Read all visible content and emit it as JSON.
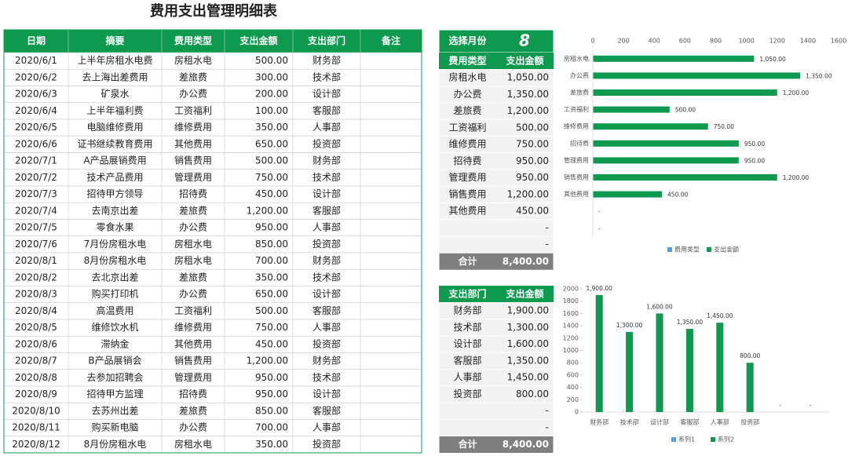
{
  "title": "费用支出管理明细表",
  "table": {
    "header": [
      "日期",
      "摘要",
      "费用类型",
      "支出金额",
      "支出部门",
      "备注"
    ],
    "rows": [
      [
        "2020/6/1",
        "上半年房租水电费",
        "房租水电",
        "500.00",
        "财务部"
      ],
      [
        "2020/6/2",
        "去上海出差费用",
        "差旅费",
        "300.00",
        "技术部"
      ],
      [
        "2020/6/3",
        "矿泉水",
        "办公费",
        "200.00",
        "设计部"
      ],
      [
        "2020/6/4",
        "上半年福利费",
        "工资福利",
        "100.00",
        "客服部"
      ],
      [
        "2020/6/5",
        "电脑维修费用",
        "维修费用",
        "350.00",
        "人事部"
      ],
      [
        "2020/6/6",
        "证书继续教育费用",
        "其他费用",
        "650.00",
        "投资部"
      ],
      [
        "2020/7/1",
        "A产品展销费用",
        "销售费用",
        "500.00",
        "财务部"
      ],
      [
        "2020/7/2",
        "技术产品费用",
        "管理费用",
        "750.00",
        "技术部"
      ],
      [
        "2020/7/3",
        "招待甲方领导",
        "招待费",
        "450.00",
        "设计部"
      ],
      [
        "2020/7/4",
        "去南京出差",
        "差旅费",
        "1,200.00",
        "客服部"
      ],
      [
        "2020/7/5",
        "零食水果",
        "办公费",
        "950.00",
        "人事部"
      ],
      [
        "2020/7/6",
        "7月份房租水电",
        "房租水电",
        "850.00",
        "投资部"
      ],
      [
        "2020/8/1",
        "8月份房租水电",
        "房租水电",
        "700.00",
        "财务部"
      ],
      [
        "2020/8/2",
        "去北京出差",
        "差旅费",
        "350.00",
        "技术部"
      ],
      [
        "2020/8/3",
        "购买打印机",
        "办公费",
        "650.00",
        "设计部"
      ],
      [
        "2020/8/4",
        "高温费用",
        "工资福利",
        "500.00",
        "客服部"
      ],
      [
        "2020/8/5",
        "维修饮水机",
        "维修费用",
        "750.00",
        "人事部"
      ],
      [
        "2020/8/6",
        "滞纳金",
        "其他费用",
        "450.00",
        "投资部"
      ],
      [
        "2020/8/7",
        "B产品展销会",
        "销售费用",
        "1,200.00",
        "财务部"
      ],
      [
        "2020/8/8",
        "去参加招聘会",
        "管理费用",
        "950.00",
        "技术部"
      ],
      [
        "2020/8/9",
        "招待甲方监理",
        "招待费",
        "950.00",
        "设计部"
      ],
      [
        "2020/8/10",
        "去苏州出差",
        "差旅费",
        "850.00",
        "客服部"
      ],
      [
        "2020/8/11",
        "购买新电脑",
        "办公费",
        "700.00",
        "人事部"
      ],
      [
        "2020/8/12",
        "8月份房租水电",
        "房租水电",
        "350.00",
        "投资部"
      ]
    ]
  },
  "summary_type": {
    "month_label": "选择月份",
    "month": 8,
    "header": [
      "费用类型",
      "支出金额"
    ],
    "rows": [
      [
        "房租水电",
        "1,050.00"
      ],
      [
        "办公费",
        "1,350.00"
      ],
      [
        "差旅费",
        "1,200.00"
      ],
      [
        "工资福利",
        "500.00"
      ],
      [
        "维修费用",
        "750.00"
      ],
      [
        "招待费",
        "950.00"
      ],
      [
        "管理费用",
        "950.00"
      ],
      [
        "销售费用",
        "1,200.00"
      ],
      [
        "其他费用",
        "450.00"
      ]
    ],
    "blank_rows": [
      "-",
      "-"
    ],
    "total": [
      "合计",
      "8,400.00"
    ]
  },
  "summary_dept": {
    "header": [
      "支出部门",
      "支出金额"
    ],
    "rows": [
      [
        "财务部",
        "1,900.00"
      ],
      [
        "技术部",
        "1,300.00"
      ],
      [
        "设计部",
        "1,600.00"
      ],
      [
        "客服部",
        "1,350.00"
      ],
      [
        "人事部",
        "1,450.00"
      ],
      [
        "投资部",
        "800.00"
      ]
    ],
    "blank_rows": [
      "-",
      "-"
    ],
    "total": [
      "合计",
      "8,400.00"
    ]
  },
  "chart_data": [
    {
      "type": "hbar",
      "categories": [
        "房租水电",
        "办公费",
        "差旅费",
        "工资福利",
        "维修费用",
        "招待费",
        "管理费用",
        "销售费用",
        "其他费用",
        null,
        null
      ],
      "series": [
        {
          "name": "费用类型",
          "color": "#5b9bd5",
          "values": [
            null,
            null,
            null,
            null,
            null,
            null,
            null,
            null,
            null,
            null,
            null
          ]
        },
        {
          "name": "支出金额",
          "color": "#0e9a4e",
          "values": [
            1050,
            1350,
            1200,
            500,
            750,
            950,
            950,
            1200,
            450,
            null,
            null
          ],
          "value_labels": [
            "1,050.00",
            "1,350.00",
            "1,200.00",
            "500.00",
            "750.00",
            "950.00",
            "950.00",
            "1,200.00",
            "450.00",
            "-",
            "-"
          ]
        }
      ],
      "xlim": [
        0,
        1600
      ],
      "xticks": [
        0,
        200,
        400,
        600,
        800,
        1000,
        1200,
        1400,
        1600
      ],
      "legend": "bottom"
    },
    {
      "type": "bar",
      "categories": [
        "财务部",
        "技术部",
        "设计部",
        "客服部",
        "人事部",
        "投资部",
        null,
        null
      ],
      "series": [
        {
          "name": "系列1",
          "color": "#5b9bd5",
          "values": [
            null,
            null,
            null,
            null,
            null,
            null,
            null,
            null
          ]
        },
        {
          "name": "系列2",
          "color": "#0e9a4e",
          "values": [
            1900,
            1300,
            1600,
            1350,
            1450,
            800,
            null,
            null
          ],
          "value_labels": [
            "1,900.00",
            "1,300.00",
            "1,600.00",
            "1,350.00",
            "1,450.00",
            "800.00",
            "-",
            "-"
          ]
        }
      ],
      "ylim": [
        0,
        2000
      ],
      "yticks": [
        0,
        200,
        400,
        600,
        800,
        1000,
        1200,
        1400,
        1600,
        1800,
        2000
      ],
      "legend": "bottom"
    }
  ]
}
